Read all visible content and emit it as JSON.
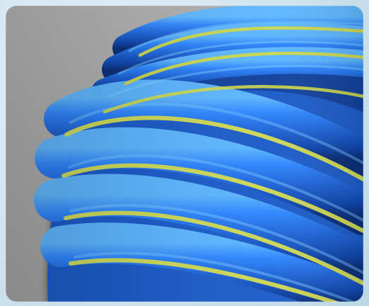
{
  "image": {
    "subject": "coiled-hose-icon",
    "colors": {
      "background": "#a7a7a7",
      "hose_blue": "#1f6bd6",
      "hose_blue_dark": "#0b3a9b",
      "hose_blue_light": "#4aa3ff",
      "stripe_yellow": "#d2d84a",
      "frame": "#cfe4ee"
    }
  }
}
